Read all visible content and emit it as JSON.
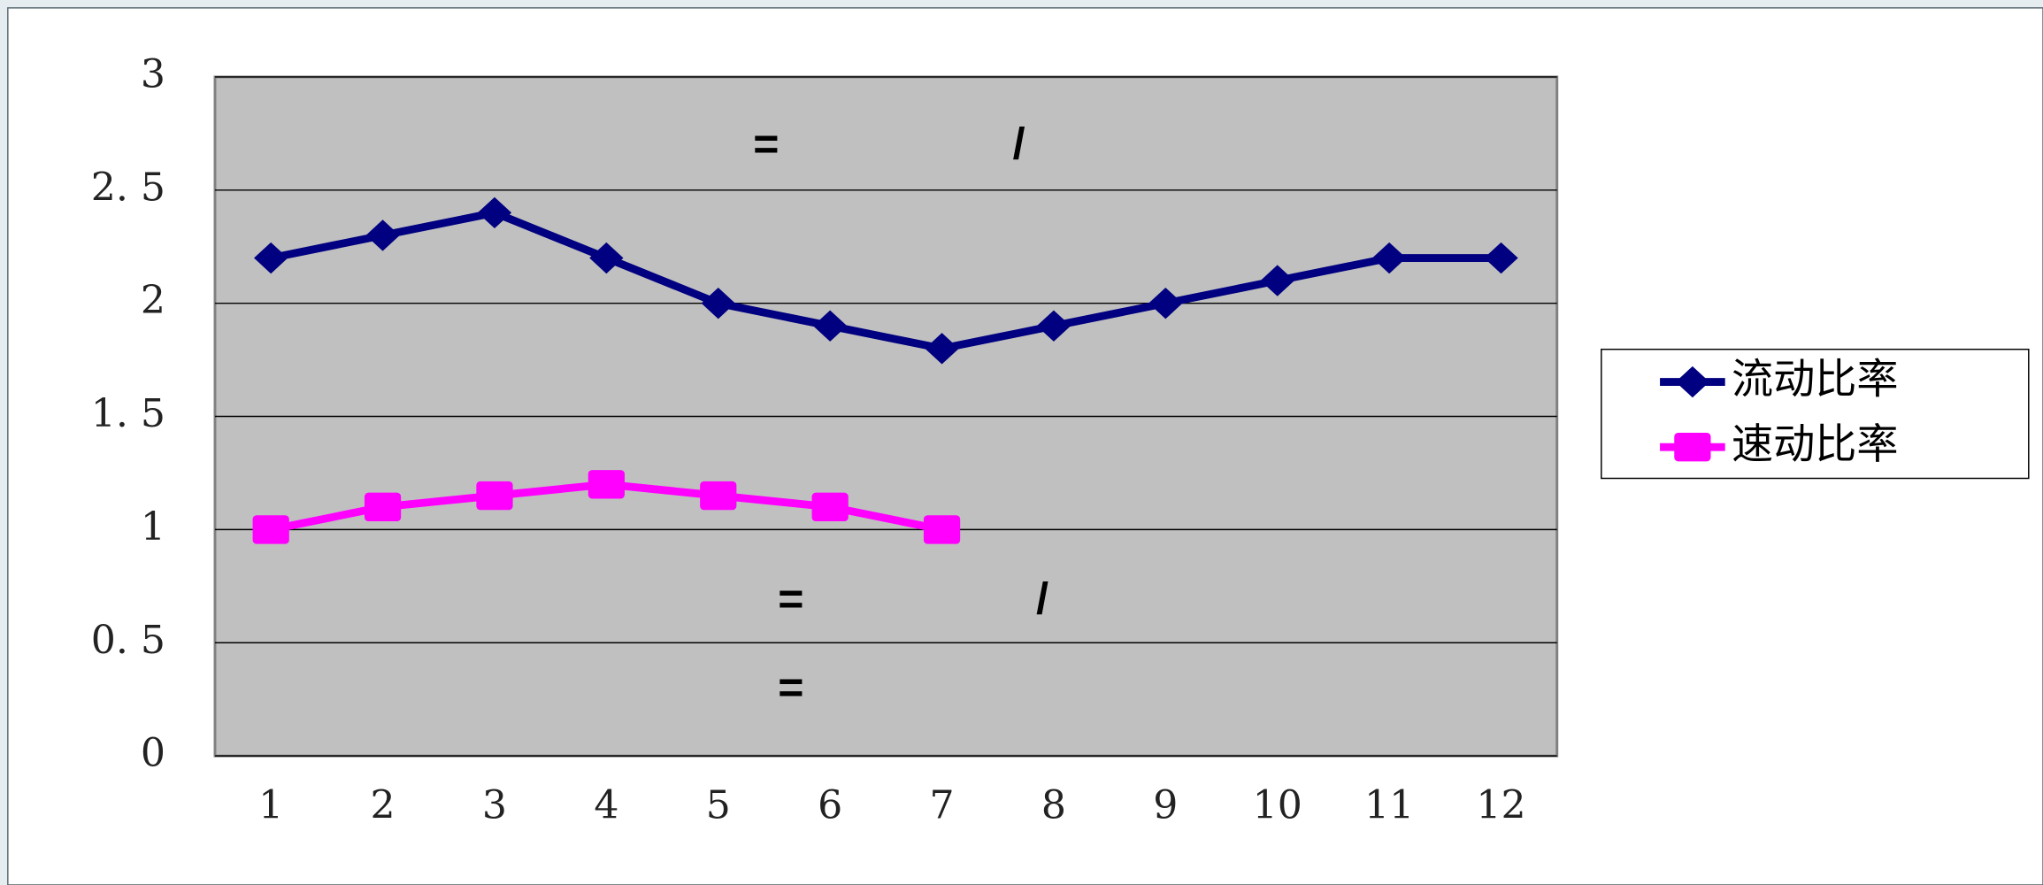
{
  "chart_data": {
    "type": "line",
    "categories": [
      "1",
      "2",
      "3",
      "4",
      "5",
      "6",
      "7",
      "8",
      "9",
      "10",
      "11",
      "12"
    ],
    "series": [
      {
        "name": "流动比率",
        "color": "#000080",
        "marker": "diamond",
        "values": [
          2.2,
          2.3,
          2.4,
          2.2,
          2.0,
          1.9,
          1.8,
          1.9,
          2.0,
          2.1,
          2.2,
          2.2
        ]
      },
      {
        "name": "速动比率",
        "color": "#ff00ff",
        "marker": "square",
        "values": [
          1.0,
          1.1,
          1.15,
          1.2,
          1.15,
          1.1,
          1.0,
          null,
          null,
          null,
          null,
          null
        ]
      }
    ],
    "ylim": [
      0,
      3
    ],
    "yticks": [
      0,
      {
        "value": 0.5,
        "label": "0. 5"
      },
      1,
      {
        "value": 1.5,
        "label": "1. 5"
      },
      2,
      {
        "value": 2.5,
        "label": "2. 5"
      },
      3
    ],
    "grid": true,
    "legend": "right",
    "plot_color": "#c0c0c0",
    "annotations": [
      "=",
      "/",
      "=",
      "/",
      "="
    ]
  }
}
